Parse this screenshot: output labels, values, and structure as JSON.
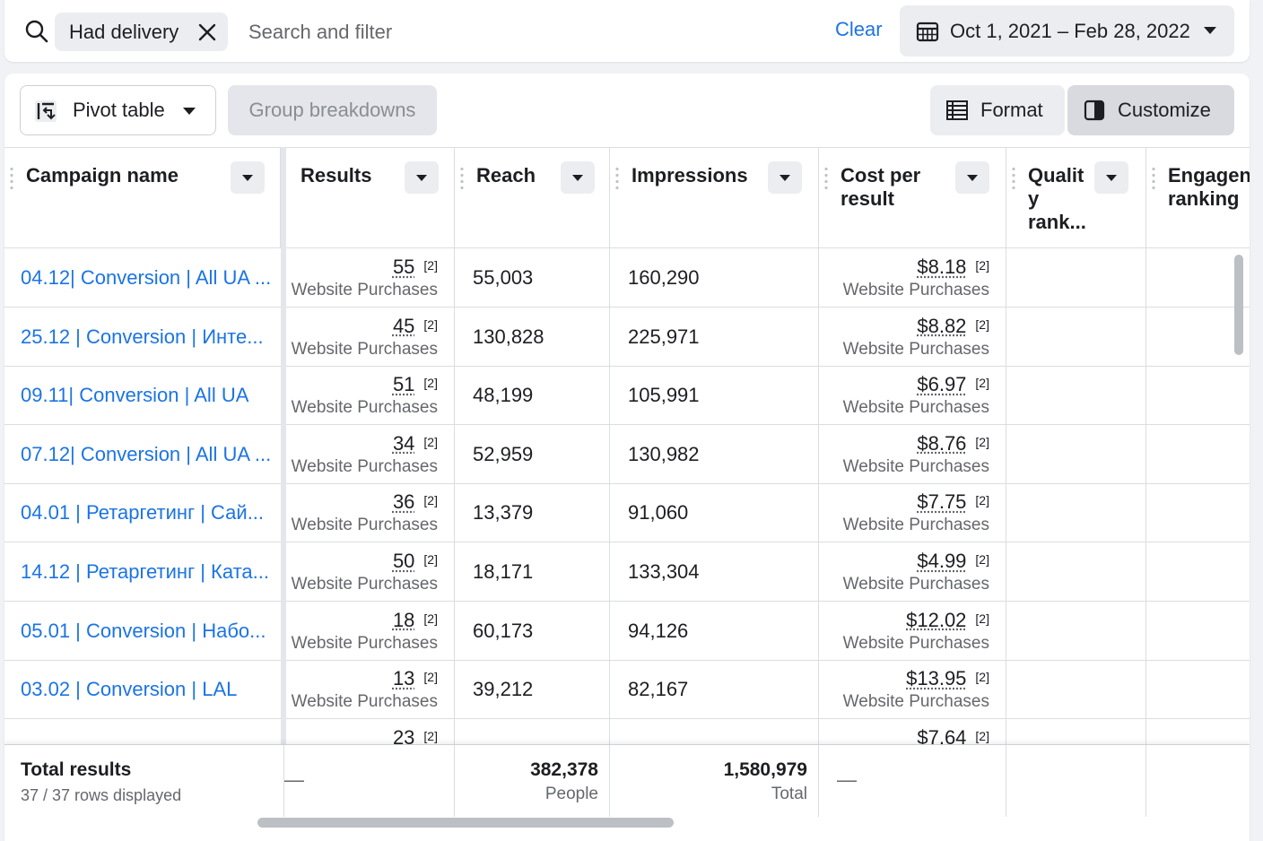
{
  "filter_bar": {
    "chip_label": "Had delivery",
    "search_placeholder": "Search and filter",
    "clear_label": "Clear",
    "date_range": "Oct 1, 2021 – Feb 28, 2022"
  },
  "toolbar": {
    "pivot_label": "Pivot table",
    "group_label": "Group breakdowns",
    "format_label": "Format",
    "customize_label": "Customize"
  },
  "columns": {
    "campaign": "Campaign name",
    "results": "Results",
    "reach": "Reach",
    "impressions": "Impressions",
    "cost": "Cost per result",
    "quality": "Qualit y rank...",
    "engagement": "Engagen ranking"
  },
  "rows": [
    {
      "name": "04.12| Conversion | All UA ...",
      "results": "55",
      "results_note": "[2]",
      "results_label": "Website Purchases",
      "reach": "55,003",
      "impressions": "160,290",
      "cost": "$8.18",
      "cost_note": "[2]",
      "cost_label": "Website Purchases"
    },
    {
      "name": "25.12 | Conversion | Инте...",
      "results": "45",
      "results_note": "[2]",
      "results_label": "Website Purchases",
      "reach": "130,828",
      "impressions": "225,971",
      "cost": "$8.82",
      "cost_note": "[2]",
      "cost_label": "Website Purchases"
    },
    {
      "name": "09.11| Conversion | All UA",
      "results": "51",
      "results_note": "[2]",
      "results_label": "Website Purchases",
      "reach": "48,199",
      "impressions": "105,991",
      "cost": "$6.97",
      "cost_note": "[2]",
      "cost_label": "Website Purchases"
    },
    {
      "name": "07.12| Conversion | All UA ...",
      "results": "34",
      "results_note": "[2]",
      "results_label": "Website Purchases",
      "reach": "52,959",
      "impressions": "130,982",
      "cost": "$8.76",
      "cost_note": "[2]",
      "cost_label": "Website Purchases"
    },
    {
      "name": "04.01 | Ретаргетинг | Сай...",
      "results": "36",
      "results_note": "[2]",
      "results_label": "Website Purchases",
      "reach": "13,379",
      "impressions": "91,060",
      "cost": "$7.75",
      "cost_note": "[2]",
      "cost_label": "Website Purchases"
    },
    {
      "name": "14.12 | Ретаргетинг | Ката...",
      "results": "50",
      "results_note": "[2]",
      "results_label": "Website Purchases",
      "reach": "18,171",
      "impressions": "133,304",
      "cost": "$4.99",
      "cost_note": "[2]",
      "cost_label": "Website Purchases"
    },
    {
      "name": "05.01 | Conversion | Набо...",
      "results": "18",
      "results_note": "[2]",
      "results_label": "Website Purchases",
      "reach": "60,173",
      "impressions": "94,126",
      "cost": "$12.02",
      "cost_note": "[2]",
      "cost_label": "Website Purchases"
    },
    {
      "name": "03.02 | Conversion | LAL",
      "results": "13",
      "results_note": "[2]",
      "results_label": "Website Purchases",
      "reach": "39,212",
      "impressions": "82,167",
      "cost": "$13.95",
      "cost_note": "[2]",
      "cost_label": "Website Purchases"
    },
    {
      "name": "",
      "results": "23",
      "results_note": "[2]",
      "results_label": "",
      "reach": "",
      "impressions": "",
      "cost": "$7.64",
      "cost_note": "[2]",
      "cost_label": ""
    }
  ],
  "footer": {
    "title": "Total results",
    "rows_displayed": "37 / 37 rows displayed",
    "results_dash": "—",
    "reach_total": "382,378",
    "reach_unit": "People",
    "impressions_total": "1,580,979",
    "impressions_unit": "Total",
    "cost_dash": "—"
  },
  "colors": {
    "link": "#1b74e4",
    "muted": "#65676b",
    "border": "#dadde1"
  }
}
